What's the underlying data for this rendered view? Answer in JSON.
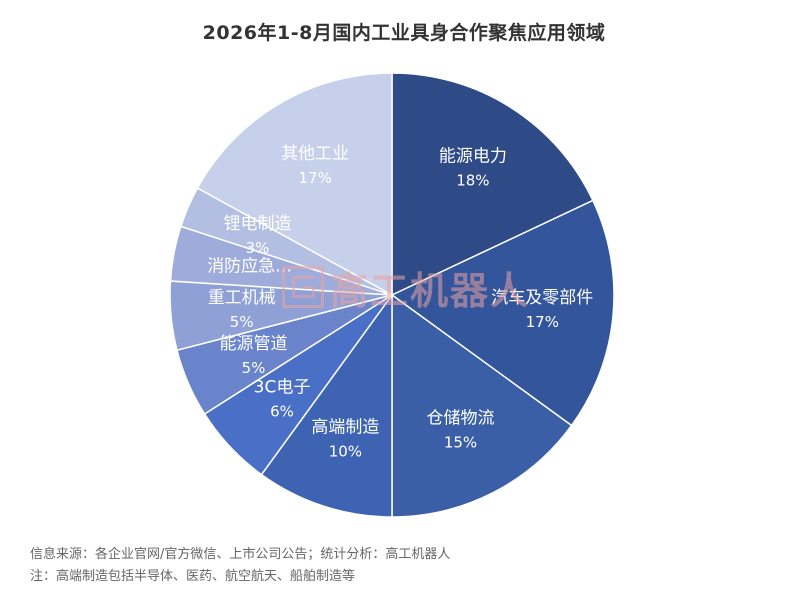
{
  "chart_data": {
    "type": "pie",
    "title": "2026年1-8月国内工业具身合作聚焦应用领域",
    "start_angle_deg": 0,
    "direction": "clockwise",
    "slices": [
      {
        "label": "能源电力",
        "value": 18,
        "value_label": "18%",
        "color": "#2e4a87",
        "label_color": "#ffffff"
      },
      {
        "label": "汽车及零部件",
        "value": 17,
        "value_label": "17%",
        "color": "#33559c",
        "label_color": "#ffffff"
      },
      {
        "label": "仓储物流",
        "value": 15,
        "value_label": "15%",
        "color": "#3a5fa6",
        "label_color": "#ffffff"
      },
      {
        "label": "高端制造",
        "value": 10,
        "value_label": "10%",
        "color": "#3e63b3",
        "label_color": "#ffffff"
      },
      {
        "label": "3C电子",
        "value": 6,
        "value_label": "6%",
        "color": "#4a6fc7",
        "label_color": "#ffffff"
      },
      {
        "label": "能源管道",
        "value": 5,
        "value_label": "5%",
        "color": "#6a84cc",
        "label_color": "#ffffff"
      },
      {
        "label": "重工机械",
        "value": 5,
        "value_label": "5%",
        "color": "#8ea0d6",
        "label_color": "#ffffff"
      },
      {
        "label": "消防应急…",
        "value": 4,
        "value_label": "",
        "color": "#9facdb",
        "label_color": "#ffffff"
      },
      {
        "label": "锂电制造",
        "value": 3,
        "value_label": "3%",
        "color": "#b3bfe2",
        "label_color": "#ffffff"
      },
      {
        "label": "其他工业",
        "value": 17,
        "value_label": "17%",
        "color": "#c7d0ea",
        "label_color": "#ffffff"
      }
    ]
  },
  "footer": {
    "source": "信息来源：各企业官网/官方微信、上市公司公告；统计分析：高工机器人",
    "note": "注：高端制造包括半导体、医药、航空航天、船舶制造等"
  },
  "watermark": {
    "text": "高工机器人"
  }
}
